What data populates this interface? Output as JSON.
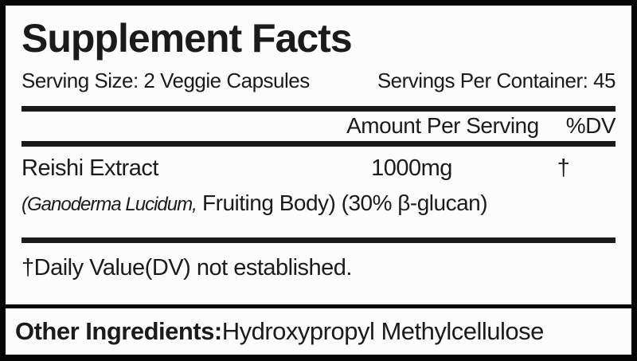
{
  "colors": {
    "background": "#060606",
    "panel": "#fcfcfc",
    "ink": "#1b1b1b",
    "rule": "#1a1a1a"
  },
  "label": {
    "title": "Supplement Facts",
    "serving": {
      "size": "Serving Size: 2 Veggie Capsules",
      "per_container": "Servings Per Container: 45"
    },
    "columns": {
      "amount": "Amount Per Serving",
      "dv": "%DV"
    },
    "rows": [
      {
        "name": "Reishi Extract",
        "amount": "1000mg",
        "dv": "†",
        "botanical": "(Ganoderma Lucidum,",
        "detail": " Fruiting Body) (30% β-glucan)"
      }
    ],
    "footnote": "†Daily Value(DV) not established.",
    "other_ingredients": {
      "label": "Other Ingredients:",
      "value": " Hydroxypropyl Methylcellulose"
    }
  }
}
